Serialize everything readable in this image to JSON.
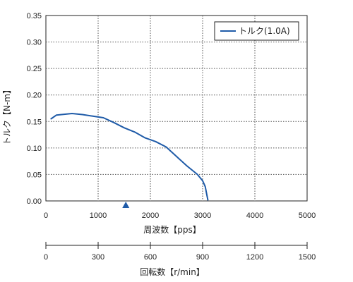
{
  "chart_data": {
    "type": "line",
    "x_axis": {
      "label": "周波数【pps】",
      "range": [
        0,
        5000
      ],
      "ticks": [
        0,
        1000,
        2000,
        3000,
        4000,
        5000
      ]
    },
    "y_axis": {
      "label": "トルク【N-m】",
      "range": [
        0,
        0.35
      ],
      "ticks": [
        "0.00",
        "0.05",
        "0.10",
        "0.15",
        "0.20",
        "0.25",
        "0.30",
        "0.35"
      ]
    },
    "secondary_x_axis": {
      "label": "回転数【r/min】",
      "range": [
        0,
        1500
      ],
      "ticks": [
        0,
        300,
        600,
        900,
        1200,
        1500
      ]
    },
    "grid": true,
    "legend": {
      "position": "top-right"
    },
    "marker": {
      "shape": "triangle",
      "x": 1530,
      "color": "#1f5ba8"
    },
    "series": [
      {
        "name": "トルク(1.0A)",
        "color": "#1f5ba8",
        "x": [
          100,
          200,
          300,
          500,
          700,
          900,
          1100,
          1300,
          1500,
          1700,
          1900,
          2100,
          2300,
          2500,
          2700,
          2900,
          3000,
          3050,
          3080,
          3100
        ],
        "y": [
          0.155,
          0.162,
          0.163,
          0.165,
          0.163,
          0.16,
          0.157,
          0.148,
          0.138,
          0.13,
          0.119,
          0.112,
          0.102,
          0.084,
          0.066,
          0.05,
          0.038,
          0.027,
          0.012,
          0.002
        ]
      }
    ]
  }
}
